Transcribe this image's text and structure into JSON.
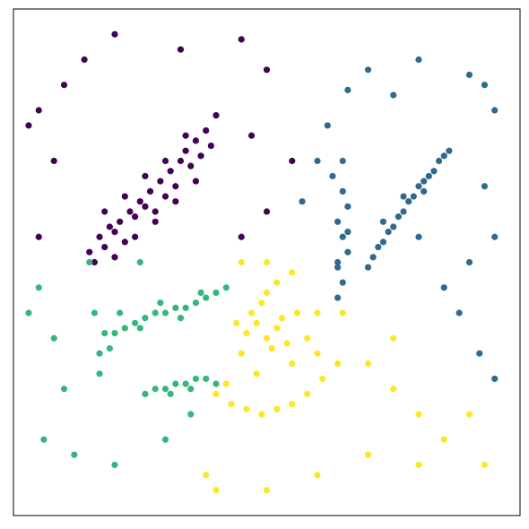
{
  "chart_data": {
    "type": "scatter",
    "xlim": [
      0,
      100
    ],
    "ylim": [
      0,
      100
    ],
    "series": [
      {
        "color": "#440154",
        "x": [
          15,
          17,
          18,
          19,
          20,
          21,
          22,
          23,
          24,
          25,
          26,
          27,
          28,
          29,
          30,
          31,
          32,
          33,
          34,
          35,
          36,
          37,
          38,
          39,
          40,
          16,
          20,
          24,
          28,
          32,
          36,
          22,
          26,
          30,
          34,
          18,
          5,
          10,
          14,
          33,
          45,
          50,
          47,
          55,
          50,
          45,
          5,
          8,
          20,
          3
        ],
        "y": [
          52,
          55,
          53,
          57,
          56,
          58,
          54,
          60,
          59,
          62,
          61,
          64,
          60,
          66,
          63,
          68,
          65,
          70,
          72,
          69,
          74,
          71,
          76,
          73,
          79,
          50,
          51,
          55,
          58,
          62,
          66,
          63,
          67,
          70,
          75,
          60,
          80,
          85,
          90,
          92,
          94,
          88,
          75,
          70,
          60,
          55,
          55,
          70,
          95,
          77
        ]
      },
      {
        "color": "#31688e",
        "x": [
          64,
          65,
          64,
          66,
          65,
          64,
          66,
          65,
          63,
          65,
          66,
          64,
          70,
          71,
          72,
          73,
          74,
          75,
          76,
          77,
          78,
          79,
          80,
          81,
          82,
          83,
          84,
          85,
          86,
          73,
          77,
          81,
          62,
          66,
          70,
          75,
          80,
          90,
          93,
          95,
          93,
          95,
          90,
          88,
          92,
          95,
          85,
          80,
          60,
          57
        ],
        "y": [
          43,
          46,
          49,
          52,
          55,
          58,
          61,
          64,
          67,
          70,
          56,
          50,
          49,
          51,
          53,
          54,
          56,
          57,
          59,
          60,
          62,
          63,
          65,
          66,
          67,
          68,
          70,
          71,
          72,
          58,
          63,
          64,
          77,
          84,
          88,
          83,
          90,
          87,
          85,
          80,
          65,
          55,
          50,
          40,
          32,
          27,
          45,
          55,
          70,
          62
        ]
      },
      {
        "color": "#35b779",
        "x": [
          19,
          20,
          22,
          24,
          26,
          28,
          30,
          32,
          34,
          36,
          38,
          40,
          42,
          21,
          25,
          29,
          33,
          37,
          26,
          28,
          30,
          32,
          34,
          36,
          38,
          40,
          31,
          35,
          17,
          17,
          18,
          16,
          5,
          3,
          8,
          10,
          6,
          12,
          20,
          30,
          35,
          15,
          25
        ],
        "y": [
          33,
          36,
          37,
          38,
          39,
          40,
          40,
          41,
          41,
          42,
          43,
          44,
          45,
          40,
          37,
          42,
          39,
          44,
          24,
          25,
          25,
          26,
          26,
          27,
          27,
          26,
          24,
          25,
          28,
          32,
          36,
          40,
          45,
          40,
          35,
          25,
          15,
          12,
          10,
          15,
          20,
          50,
          50
        ]
      },
      {
        "color": "#fde725",
        "x": [
          46,
          48,
          50,
          52,
          54,
          47,
          49,
          51,
          53,
          55,
          45,
          50,
          48,
          52,
          56,
          44,
          58,
          50,
          40,
          43,
          46,
          49,
          52,
          55,
          58,
          61,
          64,
          42,
          60,
          55,
          45,
          60,
          65,
          70,
          75,
          80,
          90,
          93,
          80,
          70,
          60,
          50,
          40,
          38,
          85,
          75
        ],
        "y": [
          36,
          38,
          35,
          37,
          34,
          40,
          42,
          33,
          39,
          30,
          32,
          44,
          28,
          46,
          40,
          38,
          35,
          50,
          24,
          22,
          21,
          20,
          21,
          22,
          24,
          27,
          30,
          26,
          32,
          48,
          50,
          40,
          40,
          30,
          25,
          20,
          20,
          10,
          10,
          12,
          8,
          5,
          5,
          8,
          15,
          35
        ]
      }
    ]
  }
}
